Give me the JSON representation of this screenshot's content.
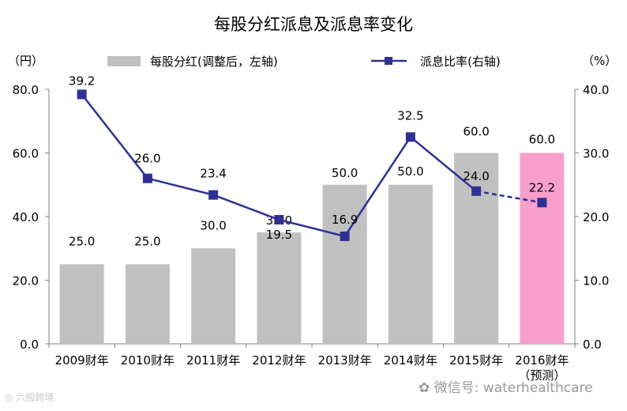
{
  "chart_data": {
    "type": "bar",
    "title": "每股分红派息及派息率变化",
    "left_unit": "（円）",
    "right_unit": "（%）",
    "categories": [
      "2009财年",
      "2010财年",
      "2011财年",
      "2012财年",
      "2013财年",
      "2014财年",
      "2015财年",
      "2016财年"
    ],
    "category_sub": [
      "",
      "",
      "",
      "",
      "",
      "",
      "",
      "（预测）"
    ],
    "series": [
      {
        "name": "每股分红(调整后，左轴)",
        "type": "bar",
        "axis": "left",
        "values": [
          25.0,
          25.0,
          30.0,
          35.0,
          50.0,
          50.0,
          60.0,
          60.0
        ],
        "labels": [
          "25.0",
          "25.0",
          "30.0",
          "35.0",
          "50.0",
          "50.0",
          "60.0",
          "60.0"
        ],
        "color": "#c0c0c0",
        "highlight_color": "#f99fcb",
        "highlight_index": 7
      },
      {
        "name": "派息比率(右轴)",
        "type": "line",
        "axis": "right",
        "values": [
          39.2,
          26.0,
          23.4,
          19.5,
          16.9,
          32.5,
          24.0,
          22.2
        ],
        "labels": [
          "39.2",
          "26.0",
          "23.4",
          "19.5",
          "16.9",
          "32.5",
          "24.0",
          "22.2"
        ],
        "color": "#2e3192",
        "dashed_from_index": 6
      }
    ],
    "left_ylim": [
      0,
      80
    ],
    "left_ticks": [
      "0.0",
      "20.0",
      "40.0",
      "60.0",
      "80.0"
    ],
    "right_ylim": [
      0,
      40
    ],
    "right_ticks": [
      "0.0",
      "10.0",
      "20.0",
      "30.0",
      "40.0"
    ],
    "grid": false,
    "legend_position": "top"
  },
  "watermark": {
    "left_text": "六般跨境",
    "right_text": "微信号: waterhealthcare"
  }
}
